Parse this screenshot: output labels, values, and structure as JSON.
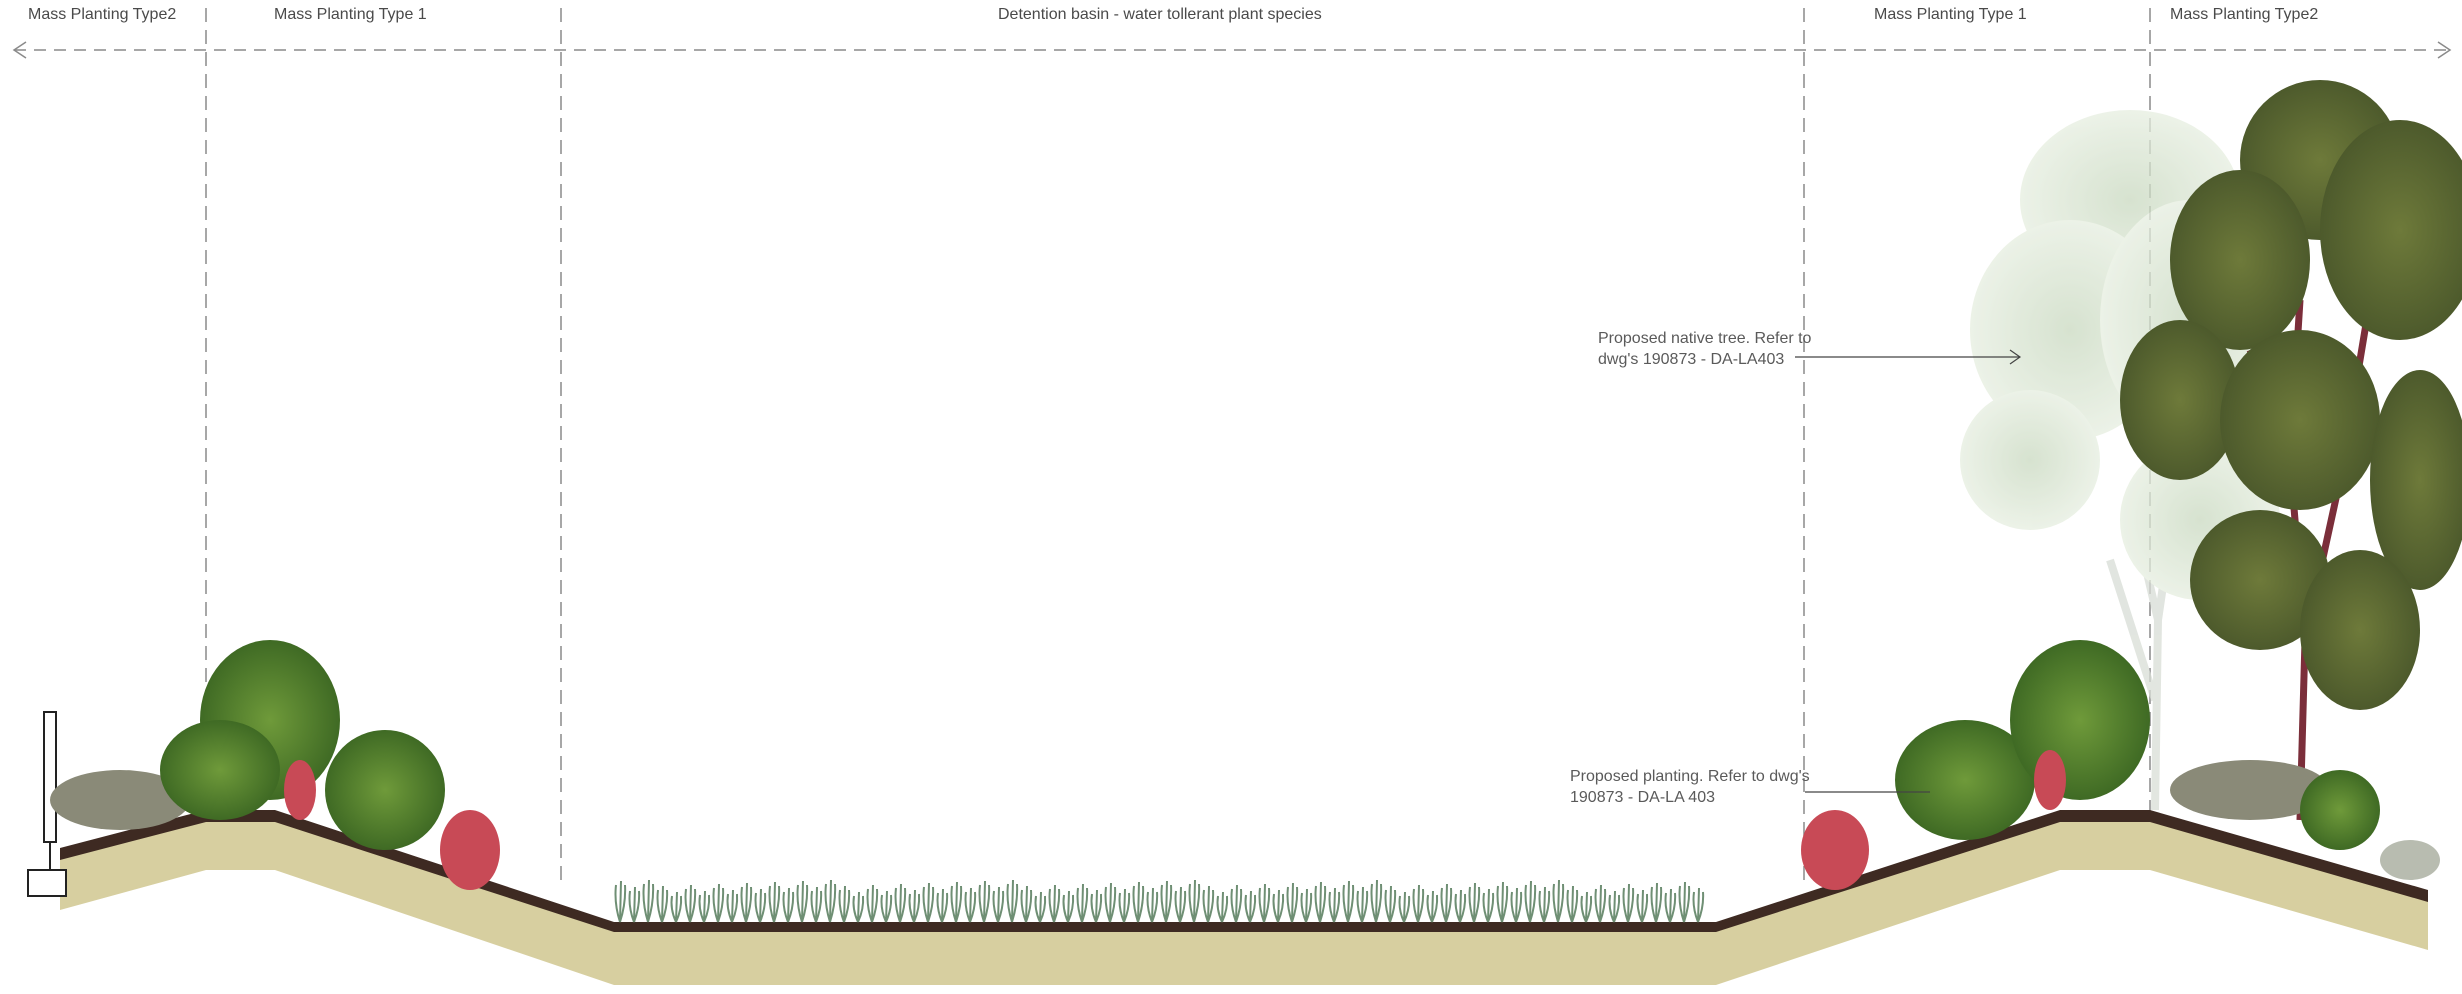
{
  "section": {
    "zones": [
      {
        "label": "Mass Planting Type2"
      },
      {
        "label": "Mass Planting Type 1"
      },
      {
        "label": "Detention basin  - water tollerant plant species"
      },
      {
        "label": "Mass Planting Type 1"
      },
      {
        "label": "Mass Planting Type2"
      }
    ],
    "annotations": [
      {
        "line1": "Proposed native tree. Refer to",
        "line2": "dwg's 190873 - DA-LA403"
      },
      {
        "line1": "Proposed planting. Refer to dwg's",
        "line2": "190873 - DA-LA 403"
      }
    ],
    "colors": {
      "soil_fill": "#d7cfa0",
      "topsoil_band": "#3e2a22",
      "dimension_line": "#8a8a8a",
      "text": "#4a4a4a"
    }
  }
}
